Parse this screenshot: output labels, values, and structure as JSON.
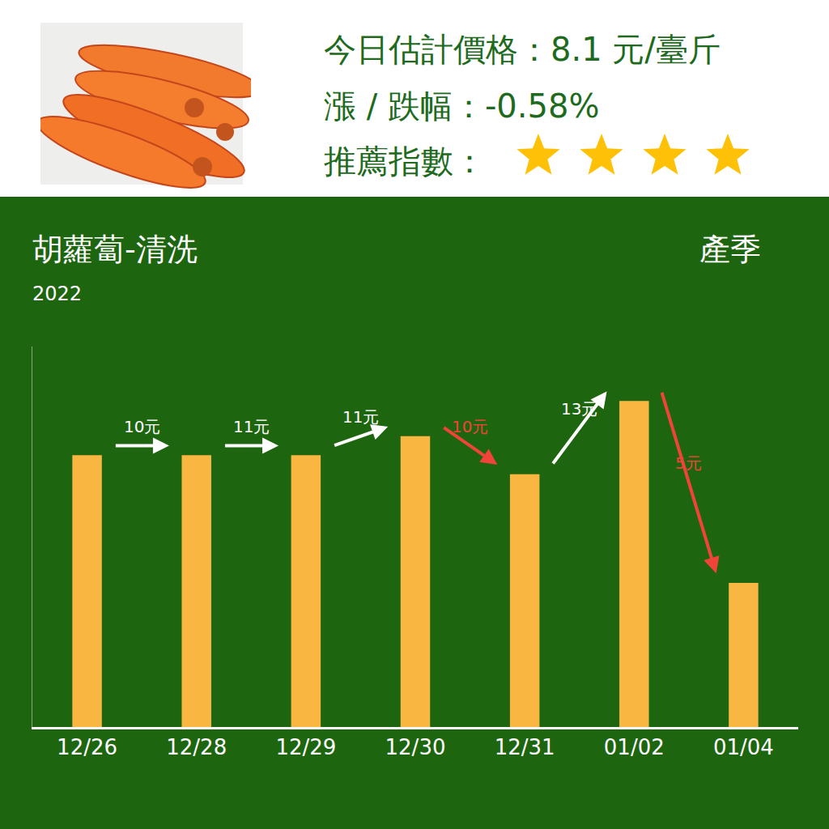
{
  "header": {
    "price_text": "今日估計價格：8.1 元/臺斤",
    "change_text": "漲 / 跌幅：-0.58%",
    "recommend_label": "推薦指數：",
    "recommend_stars": 4
  },
  "chart_data": {
    "type": "bar",
    "title": "胡蘿蔔-清洗",
    "subtitle": "2022",
    "season_label": "產季",
    "categories": [
      "12/26",
      "12/28",
      "12/29",
      "12/30",
      "12/31",
      "01/02",
      "01/04"
    ],
    "values": [
      10,
      10,
      10,
      10.7,
      9.3,
      12,
      5.3
    ],
    "color": "#f9b641",
    "ylim": [
      0,
      14
    ],
    "yticks": [],
    "grid": false,
    "tick_labels": "x",
    "annotations": [
      {
        "from": "12/26",
        "to": "12/28",
        "text": "10元",
        "color": "#ffffff"
      },
      {
        "from": "12/28",
        "to": "12/29",
        "text": "11元",
        "color": "#ffffff"
      },
      {
        "from": "12/29",
        "to": "12/30",
        "text": "11元",
        "color": "#ffffff"
      },
      {
        "from": "12/30",
        "to": "12/31",
        "text": "10元",
        "color": "#f04438"
      },
      {
        "from": "12/31",
        "to": "01/02",
        "text": "13元",
        "color": "#ffffff"
      },
      {
        "from": "01/02",
        "to": "01/04",
        "text": "5元",
        "color": "#f04438"
      }
    ]
  }
}
